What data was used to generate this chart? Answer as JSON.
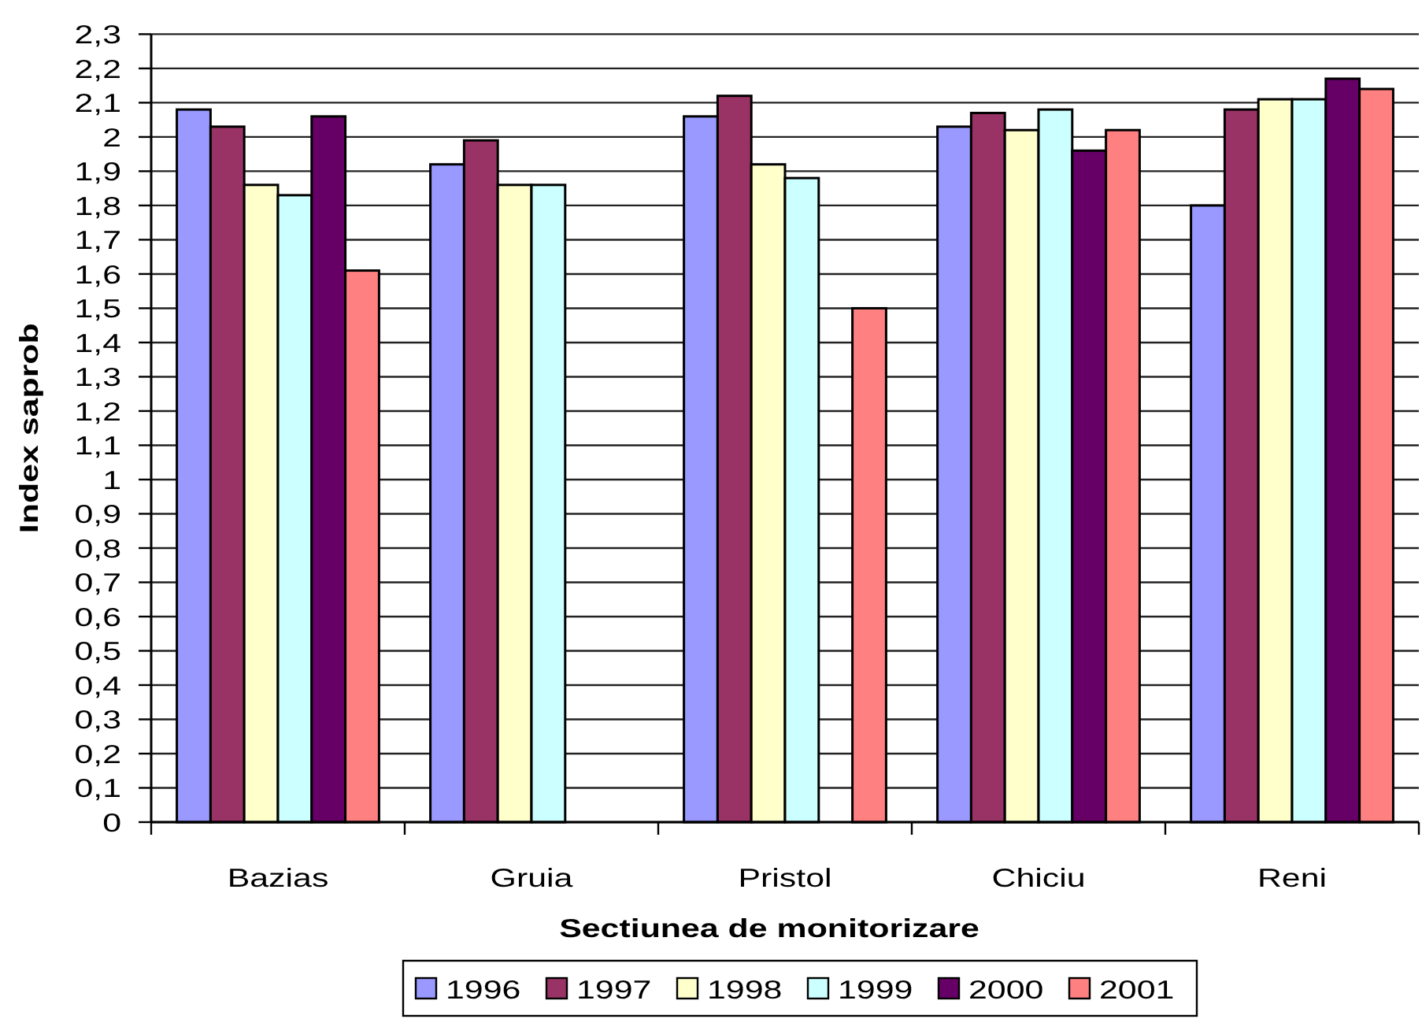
{
  "chart_data": {
    "type": "bar",
    "xlabel": "Sectiunea de monitorizare",
    "ylabel": "Index saprob",
    "categories": [
      "Bazias",
      "Gruia",
      "Pristol",
      "Chiciu",
      "Reni"
    ],
    "series": [
      {
        "name": "1996",
        "color": "#9999ff",
        "values": [
          2.08,
          1.92,
          2.06,
          2.03,
          1.8
        ]
      },
      {
        "name": "1997",
        "color": "#993366",
        "values": [
          2.03,
          1.99,
          2.12,
          2.07,
          2.08
        ]
      },
      {
        "name": "1998",
        "color": "#ffffcc",
        "values": [
          1.86,
          1.86,
          1.92,
          2.02,
          2.11
        ]
      },
      {
        "name": "1999",
        "color": "#ccffff",
        "values": [
          1.83,
          1.86,
          1.88,
          2.08,
          2.11
        ]
      },
      {
        "name": "2000",
        "color": "#660066",
        "values": [
          2.06,
          null,
          null,
          1.96,
          2.17
        ]
      },
      {
        "name": "2001",
        "color": "#ff8080",
        "values": [
          1.61,
          null,
          1.5,
          2.02,
          2.14
        ]
      }
    ],
    "ylim": [
      0,
      2.3
    ],
    "yticks": [
      0,
      {
        "value": 0.1,
        "label": "0,1"
      },
      {
        "value": 0.2,
        "label": "0,2"
      },
      {
        "value": 0.3,
        "label": "0,3"
      },
      {
        "value": 0.4,
        "label": "0,4"
      },
      {
        "value": 0.5,
        "label": "0,5"
      },
      {
        "value": 0.6,
        "label": "0,6"
      },
      {
        "value": 0.7,
        "label": "0,7"
      },
      {
        "value": 0.8,
        "label": "0,8"
      },
      {
        "value": 0.9,
        "label": "0,9"
      },
      1,
      {
        "value": 1.1,
        "label": "1,1"
      },
      {
        "value": 1.2,
        "label": "1,2"
      },
      {
        "value": 1.3,
        "label": "1,3"
      },
      {
        "value": 1.4,
        "label": "1,4"
      },
      {
        "value": 1.5,
        "label": "1,5"
      },
      {
        "value": 1.6,
        "label": "1,6"
      },
      {
        "value": 1.7,
        "label": "1,7"
      },
      {
        "value": 1.8,
        "label": "1,8"
      },
      {
        "value": 1.9,
        "label": "1,9"
      },
      2,
      {
        "value": 2.1,
        "label": "2,1"
      },
      {
        "value": 2.2,
        "label": "2,2"
      },
      {
        "value": 2.3,
        "label": "2,3"
      }
    ],
    "grid": "y",
    "legend": "bottom"
  }
}
